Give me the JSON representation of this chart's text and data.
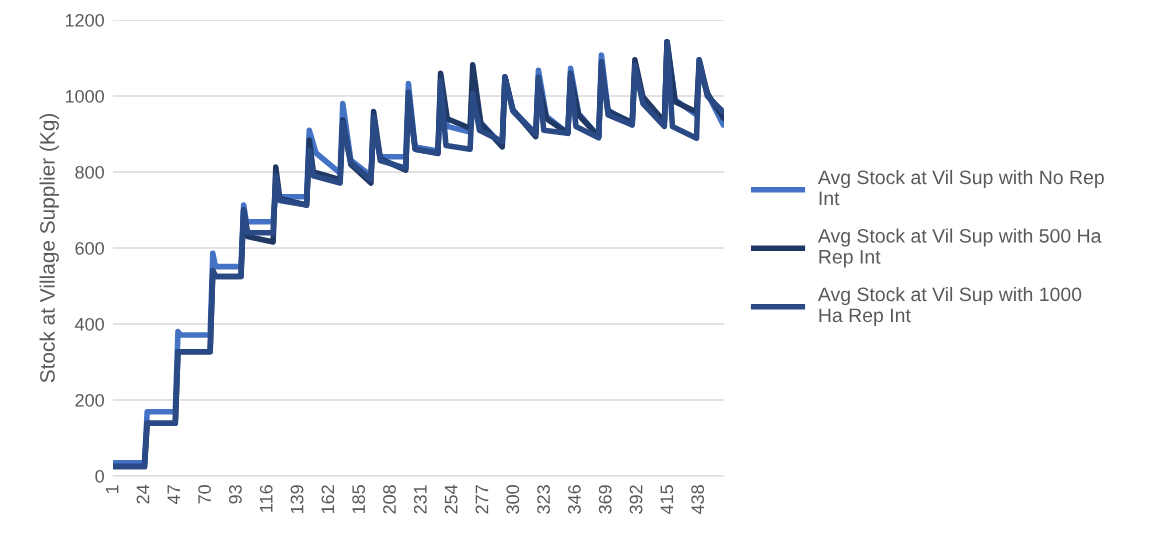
{
  "chart_data": {
    "type": "line",
    "ylabel": "Stock at Village Supplier (Kg)",
    "xlim": [
      0.5,
      456.5
    ],
    "xticks": [
      1,
      24,
      47,
      70,
      93,
      116,
      139,
      162,
      185,
      208,
      231,
      254,
      277,
      300,
      323,
      346,
      369,
      392,
      415,
      438
    ],
    "ylim": [
      0,
      1200
    ],
    "yticks": [
      0,
      200,
      400,
      600,
      800,
      1000,
      1200
    ],
    "grid": "y",
    "legend": "right",
    "marker": "none",
    "line_style": "solid",
    "series": [
      {
        "name": "Avg Stock at Vil Sup with No Rep Int",
        "color": "#4472c4",
        "x": [
          1,
          24,
          26,
          47,
          49,
          51,
          73,
          75,
          77,
          96,
          98,
          100,
          120,
          122,
          124,
          145,
          147,
          152,
          170,
          172,
          178,
          193,
          195,
          200,
          219,
          221,
          226,
          243,
          245,
          250,
          267,
          269,
          275,
          291,
          293,
          299,
          316,
          318,
          324,
          340,
          342,
          348,
          363,
          365,
          370,
          388,
          390,
          396,
          412,
          414,
          420,
          436,
          438,
          445,
          456
        ],
        "values": [
          35,
          35,
          169,
          169,
          380,
          371,
          371,
          586,
          551,
          551,
          713,
          669,
          669,
          752,
          735,
          735,
          910,
          850,
          797,
          980,
          831,
          790,
          919,
          840,
          840,
          1033,
          866,
          855,
          1000,
          920,
          905,
          1040,
          930,
          870,
          1050,
          963,
          900,
          1068,
          946,
          902,
          1073,
          954,
          893,
          1108,
          963,
          924,
          1065,
          990,
          930,
          1143,
          990,
          950,
          1070,
          1000,
          924
        ]
      },
      {
        "name": "Avg Stock at Vil Sup with 500 Ha Rep Int",
        "color": "#1f3864",
        "x": [
          1,
          24,
          26,
          47,
          49,
          73,
          75,
          77,
          96,
          98,
          101,
          120,
          122,
          125,
          145,
          147,
          150,
          170,
          172,
          178,
          193,
          195,
          200,
          219,
          221,
          226,
          243,
          245,
          250,
          267,
          269,
          275,
          291,
          293,
          299,
          316,
          318,
          324,
          340,
          342,
          348,
          363,
          365,
          370,
          388,
          390,
          396,
          412,
          414,
          420,
          436,
          438,
          444,
          456
        ],
        "values": [
          25,
          25,
          139,
          139,
          327,
          327,
          540,
          525,
          525,
          700,
          630,
          616,
          813,
          730,
          713,
          884,
          800,
          780,
          937,
          820,
          771,
          959,
          835,
          805,
          998,
          860,
          849,
          1060,
          940,
          915,
          1082,
          928,
          866,
          1050,
          963,
          893,
          1040,
          940,
          902,
          1053,
          950,
          893,
          1073,
          960,
          930,
          1095,
          998,
          932,
          1143,
          985,
          958,
          1095,
          1007,
          942
        ]
      },
      {
        "name": "Avg Stock at Vil Sup with 1000 Ha Rep Int",
        "color": "#2a4a85",
        "x": [
          1,
          24,
          26,
          47,
          49,
          73,
          75,
          77,
          96,
          98,
          101,
          120,
          122,
          125,
          145,
          147,
          150,
          170,
          172,
          178,
          193,
          195,
          200,
          219,
          221,
          226,
          243,
          245,
          249,
          267,
          269,
          274,
          291,
          293,
          299,
          316,
          318,
          322,
          340,
          342,
          346,
          363,
          365,
          370,
          388,
          390,
          396,
          412,
          414,
          418,
          436,
          438,
          444,
          456
        ],
        "values": [
          25,
          25,
          139,
          139,
          327,
          327,
          540,
          525,
          525,
          700,
          640,
          640,
          790,
          725,
          713,
          858,
          790,
          771,
          930,
          825,
          780,
          945,
          830,
          810,
          1010,
          860,
          849,
          1040,
          870,
          860,
          1007,
          910,
          880,
          1050,
          960,
          900,
          1050,
          910,
          902,
          1060,
          920,
          890,
          1090,
          950,
          924,
          1080,
          980,
          920,
          1143,
          920,
          889,
          1095,
          1000,
          958
        ]
      }
    ]
  }
}
